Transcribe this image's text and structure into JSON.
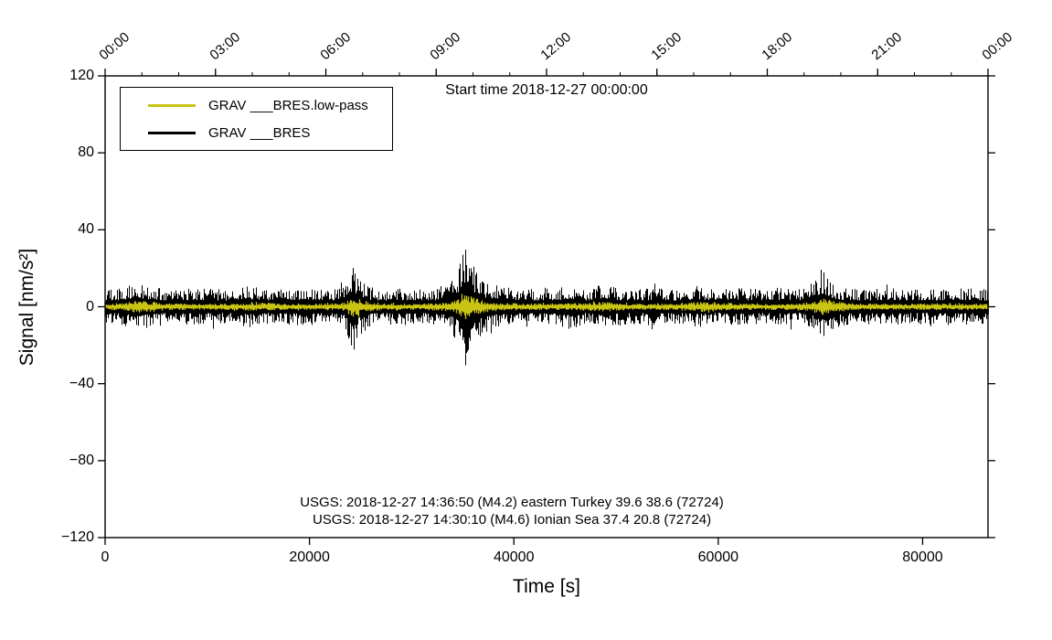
{
  "figure": {
    "background": "#ffffff",
    "frame_color": "#000000"
  },
  "chart_data": {
    "type": "line",
    "title": "Start time 2018-12-27 00:00:00",
    "xlabel": "Time [s]",
    "ylabel": "Signal [nm/s²]",
    "xlim": [
      0,
      86400
    ],
    "ylim": [
      -120,
      120
    ],
    "grid": false,
    "legend_position": "top-left",
    "x_ticks_bottom": {
      "values": [
        0,
        20000,
        40000,
        60000,
        80000
      ],
      "labels": [
        "0",
        "20000",
        "40000",
        "60000",
        "80000"
      ]
    },
    "x_ticks_top": {
      "values": [
        0,
        10800,
        21600,
        32400,
        43200,
        54000,
        64800,
        75600,
        86400
      ],
      "labels": [
        "00:00",
        "03:00",
        "06:00",
        "09:00",
        "12:00",
        "15:00",
        "18:00",
        "21:00",
        "00:00"
      ],
      "minor_interval": 3600
    },
    "y_ticks": {
      "values": [
        -120,
        -80,
        -40,
        0,
        40,
        80,
        120
      ],
      "labels": [
        "−120",
        "−80",
        "−40",
        "0",
        "40",
        "80",
        "120"
      ]
    },
    "series": [
      {
        "name": "GRAV ___BRES.low-pass",
        "color": "#c9c414",
        "style": "noise-band",
        "envelope": [
          [
            0,
            1.6
          ],
          [
            2000,
            2.2
          ],
          [
            3200,
            3.6
          ],
          [
            4500,
            2.6
          ],
          [
            6000,
            1.8
          ],
          [
            9000,
            1.6
          ],
          [
            12000,
            1.8
          ],
          [
            15000,
            2.2
          ],
          [
            18000,
            1.6
          ],
          [
            21000,
            1.6
          ],
          [
            23500,
            2.2
          ],
          [
            24300,
            5.5
          ],
          [
            25200,
            3.2
          ],
          [
            27000,
            1.8
          ],
          [
            30000,
            1.6
          ],
          [
            33500,
            2.4
          ],
          [
            34600,
            4.0
          ],
          [
            35100,
            7.5
          ],
          [
            35800,
            5.5
          ],
          [
            37000,
            3.2
          ],
          [
            39000,
            2.2
          ],
          [
            41000,
            1.7
          ],
          [
            44000,
            1.8
          ],
          [
            46000,
            2.0
          ],
          [
            48800,
            2.6
          ],
          [
            51000,
            1.7
          ],
          [
            54000,
            1.6
          ],
          [
            57000,
            2.2
          ],
          [
            58500,
            3.2
          ],
          [
            60000,
            2.2
          ],
          [
            63000,
            1.7
          ],
          [
            66000,
            1.6
          ],
          [
            69000,
            2.4
          ],
          [
            70200,
            4.8
          ],
          [
            71500,
            2.6
          ],
          [
            74000,
            1.8
          ],
          [
            78000,
            1.6
          ],
          [
            82000,
            1.7
          ],
          [
            86400,
            1.6
          ]
        ]
      },
      {
        "name": "GRAV ___BRES",
        "color": "#000000",
        "style": "noise-band",
        "envelope": [
          [
            0,
            9
          ],
          [
            1500,
            10
          ],
          [
            3000,
            12
          ],
          [
            4500,
            11
          ],
          [
            6000,
            9
          ],
          [
            9000,
            10
          ],
          [
            12000,
            9
          ],
          [
            14500,
            11
          ],
          [
            16000,
            9
          ],
          [
            19000,
            10
          ],
          [
            22000,
            9
          ],
          [
            23500,
            12
          ],
          [
            24200,
            24
          ],
          [
            24800,
            16
          ],
          [
            25500,
            11
          ],
          [
            27000,
            9
          ],
          [
            30000,
            10
          ],
          [
            32000,
            9
          ],
          [
            33800,
            13
          ],
          [
            34500,
            20
          ],
          [
            35000,
            36
          ],
          [
            35500,
            30
          ],
          [
            36200,
            20
          ],
          [
            37000,
            14
          ],
          [
            38500,
            11
          ],
          [
            40000,
            10
          ],
          [
            42000,
            9
          ],
          [
            44500,
            10
          ],
          [
            45500,
            12
          ],
          [
            47000,
            9
          ],
          [
            48800,
            13
          ],
          [
            50000,
            10
          ],
          [
            52000,
            9
          ],
          [
            54000,
            10
          ],
          [
            56000,
            9
          ],
          [
            58000,
            11
          ],
          [
            60000,
            9
          ],
          [
            62000,
            10
          ],
          [
            64000,
            9
          ],
          [
            66000,
            10
          ],
          [
            68000,
            9
          ],
          [
            69300,
            13
          ],
          [
            70000,
            20
          ],
          [
            70800,
            14
          ],
          [
            72000,
            10
          ],
          [
            74000,
            9
          ],
          [
            77000,
            10
          ],
          [
            80000,
            9
          ],
          [
            83000,
            10
          ],
          [
            86400,
            9
          ]
        ]
      }
    ],
    "annotations": [
      "USGS: 2018-12-27 14:36:50 (M4.2) eastern Turkey 39.6 38.6 (72724)",
      "USGS: 2018-12-27 14:30:10 (M4.6) Ionian Sea 37.4 20.8 (72724)"
    ]
  }
}
